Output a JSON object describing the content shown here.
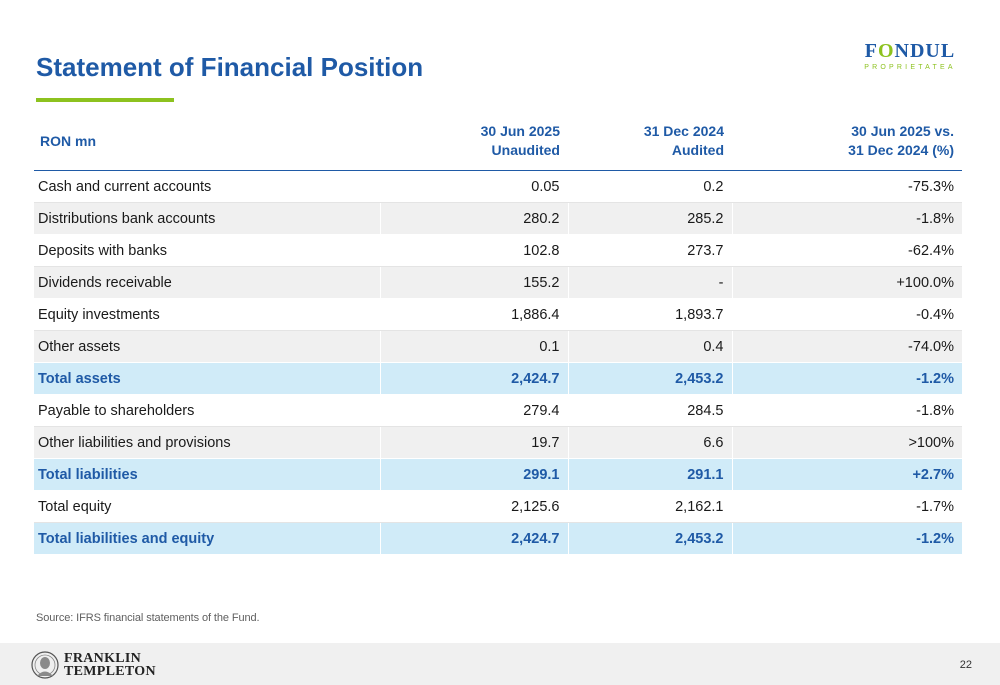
{
  "title": "Statement of Financial Position",
  "logo": {
    "word_pre": "F",
    "word_o": "O",
    "word_post": "NDUL",
    "sub": "PROPRIETATEA"
  },
  "table": {
    "headers": [
      {
        "line1": "RON mn",
        "line2": ""
      },
      {
        "line1": "30 Jun 2025",
        "line2": "Unaudited"
      },
      {
        "line1": "31 Dec 2024",
        "line2": "Audited"
      },
      {
        "line1": "30 Jun 2025 vs.",
        "line2": "31 Dec 2024 (%)"
      }
    ],
    "rows": [
      {
        "label": "Cash and current accounts",
        "jun2025": "0.05",
        "dec2024": "0.2",
        "change": "-75.3%",
        "total": false
      },
      {
        "label": "Distributions bank accounts",
        "jun2025": "280.2",
        "dec2024": "285.2",
        "change": "-1.8%",
        "total": false
      },
      {
        "label": "Deposits with banks",
        "jun2025": "102.8",
        "dec2024": "273.7",
        "change": "-62.4%",
        "total": false
      },
      {
        "label": "Dividends receivable",
        "jun2025": "155.2",
        "dec2024": "-",
        "change": "+100.0%",
        "total": false
      },
      {
        "label": "Equity investments",
        "jun2025": "1,886.4",
        "dec2024": "1,893.7",
        "change": "-0.4%",
        "total": false
      },
      {
        "label": "Other assets",
        "jun2025": "0.1",
        "dec2024": "0.4",
        "change": "-74.0%",
        "total": false
      },
      {
        "label": "Total assets",
        "jun2025": "2,424.7",
        "dec2024": "2,453.2",
        "change": "-1.2%",
        "total": true
      },
      {
        "label": "Payable to shareholders",
        "jun2025": "279.4",
        "dec2024": "284.5",
        "change": "-1.8%",
        "total": false
      },
      {
        "label": "Other liabilities and provisions",
        "jun2025": "19.7",
        "dec2024": "6.6",
        "change": ">100%",
        "total": false
      },
      {
        "label": "Total liabilities",
        "jun2025": "299.1",
        "dec2024": "291.1",
        "change": "+2.7%",
        "total": true
      },
      {
        "label": "Total equity",
        "jun2025": "2,125.6",
        "dec2024": "2,162.1",
        "change": "-1.7%",
        "total": false
      },
      {
        "label": "Total liabilities and equity",
        "jun2025": "2,424.7",
        "dec2024": "2,453.2",
        "change": "-1.2%",
        "total": true
      }
    ]
  },
  "source": "Source: IFRS financial statements of the Fund.",
  "footer": {
    "brand_line1": "FRANKLIN",
    "brand_line2": "TEMPLETON",
    "page_number": "22"
  },
  "colors": {
    "brand_blue": "#1f5aa6",
    "accent_green": "#8dc21f",
    "total_row_bg": "#d0ebf8"
  }
}
